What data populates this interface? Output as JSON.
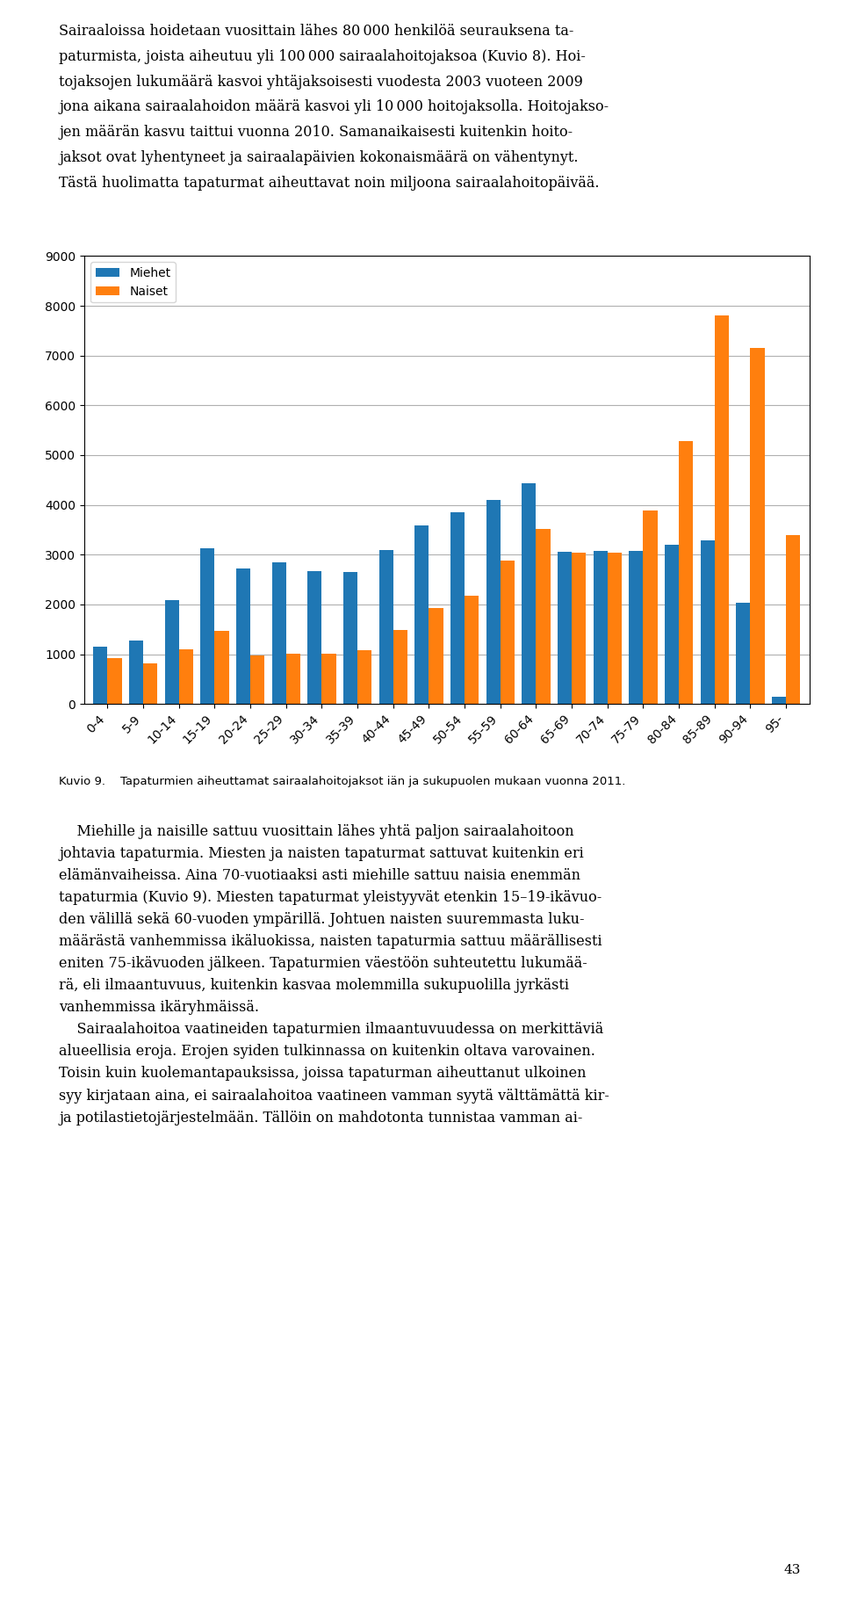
{
  "chart_data": {
    "type": "bar",
    "categories": [
      "0-4",
      "5-9",
      "10-14",
      "15-19",
      "20-24",
      "25-29",
      "30-34",
      "35-39",
      "40-44",
      "45-49",
      "50-54",
      "55-59",
      "60-64",
      "65-69",
      "70-74",
      "75-79",
      "80-84",
      "85-89",
      "90-94",
      "95-"
    ],
    "series": [
      {
        "name": "Miehet",
        "values": [
          1150,
          1280,
          2080,
          3130,
          2720,
          2850,
          2670,
          2650,
          3100,
          3580,
          3850,
          4100,
          4430,
          3060,
          3070,
          3080,
          3200,
          3280,
          2030,
          150
        ]
      },
      {
        "name": "Naiset",
        "values": [
          930,
          820,
          1090,
          1470,
          970,
          1010,
          1010,
          1080,
          1480,
          1920,
          2180,
          2880,
          3510,
          3040,
          3040,
          3880,
          5280,
          7800,
          7150,
          3390
        ]
      }
    ],
    "ylim": [
      0,
      9000
    ],
    "yticks": [
      0,
      1000,
      2000,
      3000,
      4000,
      5000,
      6000,
      7000,
      8000,
      9000
    ],
    "grid": true,
    "legend": "upper left",
    "annotations": [
      "Sairaaloissa hoidetaan vuosittain lähes 80 000 henkilöä seurauksena ta-\npaturmista, joista aiheutuu yli 100 000 sairaalahoitojaksoa (Kuvio 8). Hoi-\ntojaksojen lukumäärä kasvoi yhtäjaksoisesti vuodesta 2003 vuoteen 2009\njona aikana sairaalahoidon määrä kasvoi yli 10 000 hoitojaksolla. Hoitojakso-\njen määrän kasvu taittui vuonna 2010. Samanaikaisesti kuitenkin hoito-\njaksot ovat lyhentyneet ja sairaalapäivien kokonaismäärä on vähentynyt.\nTästä huolimatta tapaturmat aiheuttavat noin miljoona sairaalahoitopäivää.",
      "Kuvio 9.    Tapaturmien aiheuttamat sairaalahoitojaksot iän ja sukupuolen mukaan vuonna 2011.",
      "    Miehille ja naisille sattuu vuosittain lähes yhtä paljon sairaalahoitoon\njohtavia tapaturmia. Miesten ja naisten tapaturmat sattuvat kuitenkin eri\nelämänvaiheissa. Aina 70-vuotiaaksi asti miehille sattuu naisia enemmän\ntapaturmia (Kuvio 9). Miesten tapaturmat yleistyyvät etenkin 15–19-ikävuo-\nden välillä sekä 60-vuoden ympärillä. Johtuen naisten suuremmasta luku-\nmäärästä vanhemmissa ikäluokissa, naisten tapaturmia sattuu määrällisesti\neniten 75-ikävuoden jälkeen. Tapaturmien väestöön suhteutettu lukumää-\nrä, eli ilmaantuvuus, kuitenkin kasvaa molemmilla sukupuolilla jyrkästi\nvanhemmissa ikäryhmäissä.\n    Sairaalahoitoa vaatineiden tapaturmien ilmaantuvuudessa on merkittäviä\nalueellisia eroja. Erojen syiden tulkinnassa on kuitenkin oltava varovainen.\nToisin kuin kuolemantapauksissa, joissa tapaturman aiheuttanut ulkoinen\nsyy kirjataan aina, ei sairaalahoitoa vaatineen vamman syytä välttämättä kir-\nja potilastietojärjestelmään. Tällöin on mahdotonta tunnistaa vamman ai-",
      "43"
    ]
  }
}
